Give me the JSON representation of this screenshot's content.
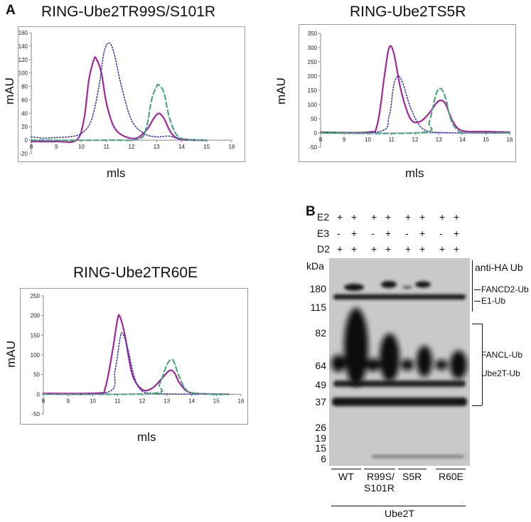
{
  "panels": {
    "a_label": "A",
    "b_label": "B"
  },
  "charts": [
    {
      "title": "RING-Ube2TR99S/S101R",
      "ylabel": "mAU",
      "xlabel": "mls"
    },
    {
      "title": "RING-Ube2TS5R",
      "ylabel": "mAU",
      "xlabel": "mls"
    },
    {
      "title": "RING-Ube2TR60E",
      "ylabel": "mAU",
      "xlabel": "mls"
    }
  ],
  "chart_data": [
    {
      "type": "line",
      "title": "RING-Ube2TR99S/S101R",
      "xlabel": "mls",
      "ylabel": "mAU",
      "xlim": [
        8,
        16
      ],
      "ylim": [
        -20,
        160
      ],
      "xticks": [
        8,
        9,
        10,
        11,
        12,
        13,
        14,
        15,
        16
      ],
      "yticks": [
        -20,
        0,
        20,
        40,
        60,
        80,
        100,
        120,
        140,
        160
      ],
      "grid": false,
      "series": [
        {
          "style": "solid",
          "color": "#a0289a",
          "x": [
            8.0,
            9.0,
            9.8,
            10.1,
            10.3,
            10.5,
            10.6,
            10.8,
            11.0,
            11.3,
            11.7,
            12.2,
            12.6,
            12.9,
            13.1,
            13.3,
            13.6,
            14.0,
            15.0
          ],
          "y": [
            -2,
            -2,
            0,
            30,
            90,
            120,
            121,
            100,
            55,
            20,
            6,
            3,
            15,
            33,
            40,
            32,
            10,
            1,
            0
          ]
        },
        {
          "style": "dotted",
          "color": "#3a3aa0",
          "x": [
            8.0,
            8.5,
            9.0,
            9.5,
            10.0,
            10.4,
            10.7,
            10.9,
            11.1,
            11.3,
            11.6,
            12.0,
            12.5,
            13.0,
            13.5,
            14.0,
            15.0
          ],
          "y": [
            5,
            3,
            4,
            5,
            10,
            30,
            80,
            130,
            145,
            130,
            80,
            30,
            10,
            5,
            6,
            2,
            0
          ]
        },
        {
          "style": "dashed",
          "color": "#4fa683",
          "x": [
            8.0,
            11.0,
            12.3,
            12.6,
            12.8,
            13.0,
            13.1,
            13.3,
            13.5,
            13.8,
            14.2,
            15.0
          ],
          "y": [
            0,
            0,
            2,
            20,
            60,
            80,
            82,
            70,
            35,
            8,
            1,
            0
          ]
        }
      ]
    },
    {
      "type": "line",
      "title": "RING-Ube2TS5R",
      "xlabel": "mls",
      "ylabel": "mAU",
      "xlim": [
        8,
        16
      ],
      "ylim": [
        -50,
        350
      ],
      "xticks": [
        8,
        9,
        10,
        11,
        12,
        13,
        14,
        15,
        16
      ],
      "yticks": [
        -50,
        0,
        50,
        100,
        150,
        200,
        250,
        300,
        350
      ],
      "grid": false,
      "series": [
        {
          "style": "solid",
          "color": "#a0289a",
          "x": [
            8.0,
            10.0,
            10.4,
            10.7,
            10.9,
            11.1,
            11.4,
            11.8,
            12.2,
            12.6,
            12.9,
            13.1,
            13.3,
            13.6,
            14.0,
            15.0,
            16.0
          ],
          "y": [
            3,
            3,
            30,
            200,
            300,
            280,
            150,
            50,
            40,
            70,
            105,
            115,
            100,
            40,
            8,
            5,
            3
          ]
        },
        {
          "style": "dotted",
          "color": "#3a3aa0",
          "x": [
            8.0,
            10.5,
            10.9,
            11.1,
            11.3,
            11.5,
            11.8,
            12.2,
            12.6,
            13.0,
            14.0,
            16.0
          ],
          "y": [
            0,
            5,
            60,
            170,
            200,
            170,
            90,
            25,
            5,
            2,
            0,
            0
          ]
        },
        {
          "style": "dashed",
          "color": "#4fa683",
          "x": [
            8.0,
            12.3,
            12.6,
            12.9,
            13.1,
            13.3,
            13.5,
            13.8,
            14.2,
            16.0
          ],
          "y": [
            0,
            2,
            40,
            140,
            155,
            120,
            50,
            10,
            1,
            0
          ]
        }
      ]
    },
    {
      "type": "line",
      "title": "RING-Ube2TR60E",
      "xlabel": "mls",
      "ylabel": "mAU",
      "xlim": [
        8,
        16
      ],
      "ylim": [
        -50,
        250
      ],
      "xticks": [
        8,
        9,
        10,
        11,
        12,
        13,
        14,
        15,
        16
      ],
      "yticks": [
        -50,
        0,
        50,
        100,
        150,
        200,
        250
      ],
      "grid": false,
      "series": [
        {
          "style": "solid",
          "color": "#a0289a",
          "x": [
            8.0,
            10.2,
            10.5,
            10.8,
            11.0,
            11.1,
            11.3,
            11.6,
            12.0,
            12.4,
            12.8,
            13.1,
            13.3,
            13.5,
            13.8,
            14.2,
            15.0,
            15.5
          ],
          "y": [
            2,
            3,
            15,
            110,
            190,
            197,
            150,
            50,
            12,
            15,
            40,
            60,
            55,
            30,
            8,
            2,
            0,
            0
          ]
        },
        {
          "style": "dotted",
          "color": "#3a3aa0",
          "x": [
            8.0,
            10.6,
            10.9,
            11.1,
            11.2,
            11.4,
            11.7,
            12.0,
            12.5,
            13.0,
            14.0,
            15.5
          ],
          "y": [
            0,
            5,
            60,
            140,
            155,
            120,
            40,
            8,
            2,
            1,
            0,
            0
          ]
        },
        {
          "style": "dashed",
          "color": "#4fa683",
          "x": [
            8.0,
            12.4,
            12.7,
            13.0,
            13.2,
            13.3,
            13.5,
            13.8,
            14.2,
            15.5
          ],
          "y": [
            0,
            2,
            25,
            75,
            88,
            80,
            45,
            10,
            2,
            0
          ]
        }
      ]
    }
  ],
  "blot": {
    "row_labels": [
      "E2",
      "E3",
      "D2"
    ],
    "rows": {
      "e2": [
        "+",
        "+",
        "+",
        "+",
        "+",
        "+",
        "+",
        "+"
      ],
      "e3": [
        "-",
        "+",
        "-",
        "+",
        "-",
        "+",
        "-",
        "+"
      ],
      "d2": [
        "+",
        "+",
        "+",
        "+",
        "+",
        "+",
        "+",
        "+"
      ]
    },
    "kda_label": "kDa",
    "markers": [
      "180",
      "115",
      "82",
      "64",
      "49",
      "37",
      "26",
      "19",
      "15",
      "6"
    ],
    "right_labels": {
      "antibody": "anti-HA Ub",
      "fancd2_ub": "FANCD2-Ub",
      "e1_ub": "E1-Ub",
      "fancl_ub": "FANCL-Ub",
      "ube2t_ub": "Ube2T-Ub"
    },
    "groups": [
      "WT",
      "R99S/\nS101R",
      "S5R",
      "R60E"
    ],
    "group_line1": [
      "WT",
      "R99S/",
      "S5R",
      "R60E"
    ],
    "group_line2": [
      "",
      "S101R",
      "",
      ""
    ],
    "bottom_label": "Ube2T"
  }
}
